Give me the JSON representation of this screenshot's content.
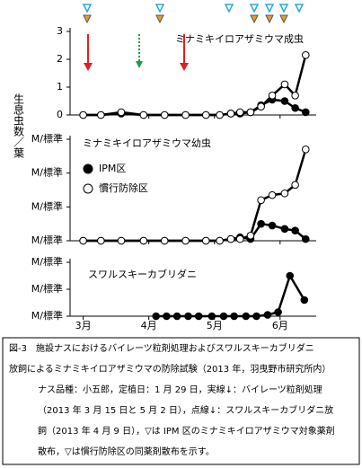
{
  "y_axis_label": "生息虫数／葉",
  "chart_data": [
    {
      "type": "line",
      "title": "ミナミキイロアザミウマ成虫",
      "x": [
        3.0,
        3.27,
        3.58,
        3.92,
        4.24,
        4.56,
        4.87,
        5.08,
        5.25,
        5.39,
        5.55,
        5.71,
        5.88,
        6.07,
        6.23,
        6.39
      ],
      "series": [
        {
          "color": "#000000",
          "marker": "filled",
          "values": [
            0,
            0,
            0.05,
            0,
            0,
            0,
            0,
            0,
            0.05,
            0.05,
            0.1,
            0.35,
            0.55,
            0.5,
            0.25,
            0.1
          ]
        },
        {
          "color": "#000000",
          "marker": "open",
          "values": [
            0,
            0,
            0.1,
            0,
            0,
            0,
            0,
            0,
            0.05,
            0.1,
            0.1,
            0.3,
            0.7,
            1.1,
            0.7,
            2.15
          ]
        }
      ],
      "xlim": [
        2.8,
        6.55
      ],
      "xticks": [
        3,
        4,
        5,
        6
      ],
      "ylim": [
        0,
        3
      ],
      "yticks": [
        0,
        1,
        2,
        3
      ]
    },
    {
      "type": "line",
      "title": "ミナミキイロアザミウマ幼虫",
      "x": [
        3.0,
        3.27,
        3.58,
        3.92,
        4.24,
        4.56,
        4.87,
        5.08,
        5.25,
        5.39,
        5.55,
        5.71,
        5.88,
        6.07,
        6.23,
        6.39
      ],
      "series": [
        {
          "name": "IPM区",
          "color": "#000000",
          "marker": "filled",
          "values": [
            0,
            0,
            0,
            0,
            0,
            0,
            0,
            0,
            0.05,
            0.1,
            0.05,
            0.5,
            0.45,
            0.35,
            0.3,
            0.05
          ]
        },
        {
          "name": "慣行防除区",
          "color": "#000000",
          "marker": "open",
          "values": [
            0,
            0,
            0,
            0,
            0,
            0,
            0,
            0,
            0.05,
            0.05,
            0.15,
            1.2,
            1.35,
            1.4,
            1.65,
            2.7
          ]
        }
      ],
      "xlim": [
        2.8,
        6.55
      ],
      "xticks": [
        3,
        4,
        5,
        6
      ],
      "ylim": [
        0,
        3
      ],
      "yticks": [
        {
          "value": 0,
          "label": "M/標準"
        },
        {
          "value": 1,
          "label": "M/標準"
        },
        {
          "value": 2,
          "label": "M/標準"
        },
        {
          "value": 3,
          "label": "M/標準"
        }
      ]
    },
    {
      "type": "line",
      "title": "スワルスキーカブリダニ",
      "x": [
        4.11,
        4.27,
        4.43,
        4.6,
        4.76,
        4.96,
        5.14,
        5.3,
        5.48,
        5.64,
        5.81,
        5.97,
        6.15,
        6.37
      ],
      "series": [
        {
          "color": "#000000",
          "marker": "filled",
          "values": [
            0,
            0,
            0,
            0,
            0,
            0,
            0,
            0,
            0,
            0,
            0.05,
            0.15,
            1.5,
            0.6
          ]
        }
      ],
      "xlim": [
        2.8,
        6.55
      ],
      "xticks": [
        {
          "value": 3,
          "label": "3月"
        },
        {
          "value": 4,
          "label": "4月"
        },
        {
          "value": 5,
          "label": "5月"
        },
        {
          "value": 6,
          "label": "6月"
        }
      ],
      "ylim": [
        0,
        2
      ],
      "yticks": [
        {
          "value": 0,
          "label": "M/標準"
        },
        {
          "value": 1,
          "label": "M/標準"
        },
        {
          "value": 2,
          "label": "M/標準"
        }
      ]
    }
  ],
  "caption": [
    "図-3　施設ナスにおけるバイレーツ粒剤処理およびスワルスキーカブリダニ",
    "放飼によるミナミキイロアザミウマの防除試験（2013 年，羽曳野市研究所内）",
    "ナス品種：小五郎，定植日：1 月 29 日，実線↓：バイレーツ粒剤処理",
    "（2013 年 3 月 15 日と 5 月 2 日），点線↓：スワルスキーカブリダニ放",
    "飼（2013 年 4 月 9 日），▽は IPM 区のミナミキイロアザミウマ対象薬剤",
    "散布，▽は慣行防除区の同薬剤散布を示す。"
  ]
}
